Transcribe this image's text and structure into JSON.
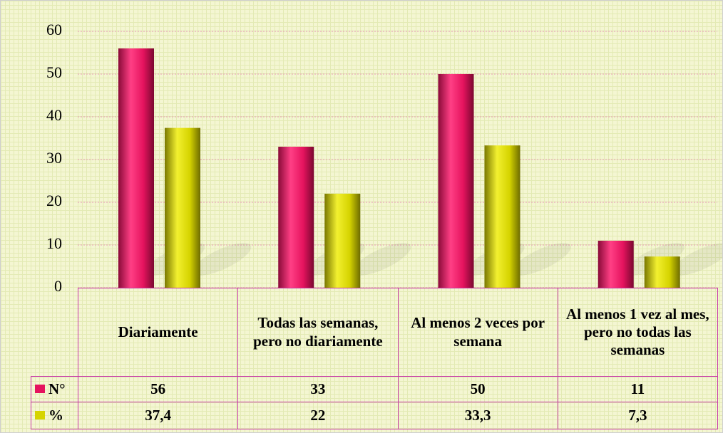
{
  "chart_data": {
    "type": "bar",
    "categories": [
      "Diariamente",
      "Todas las semanas, pero no diariamente",
      "Al menos 2 veces por semana",
      "Al menos 1 vez al mes, pero no todas las semanas"
    ],
    "series": [
      {
        "name": "N°",
        "color": "#e5135e",
        "values": [
          56,
          33,
          50,
          11
        ]
      },
      {
        "name": "%",
        "color": "#d6d400",
        "values": [
          37.4,
          22,
          33.3,
          7.3
        ],
        "value_labels": [
          "37,4",
          "22",
          "33,3",
          "7,3"
        ]
      }
    ],
    "ylim": [
      0,
      60
    ],
    "yticks": [
      0,
      10,
      20,
      30,
      40,
      50,
      60
    ],
    "grid": true
  }
}
